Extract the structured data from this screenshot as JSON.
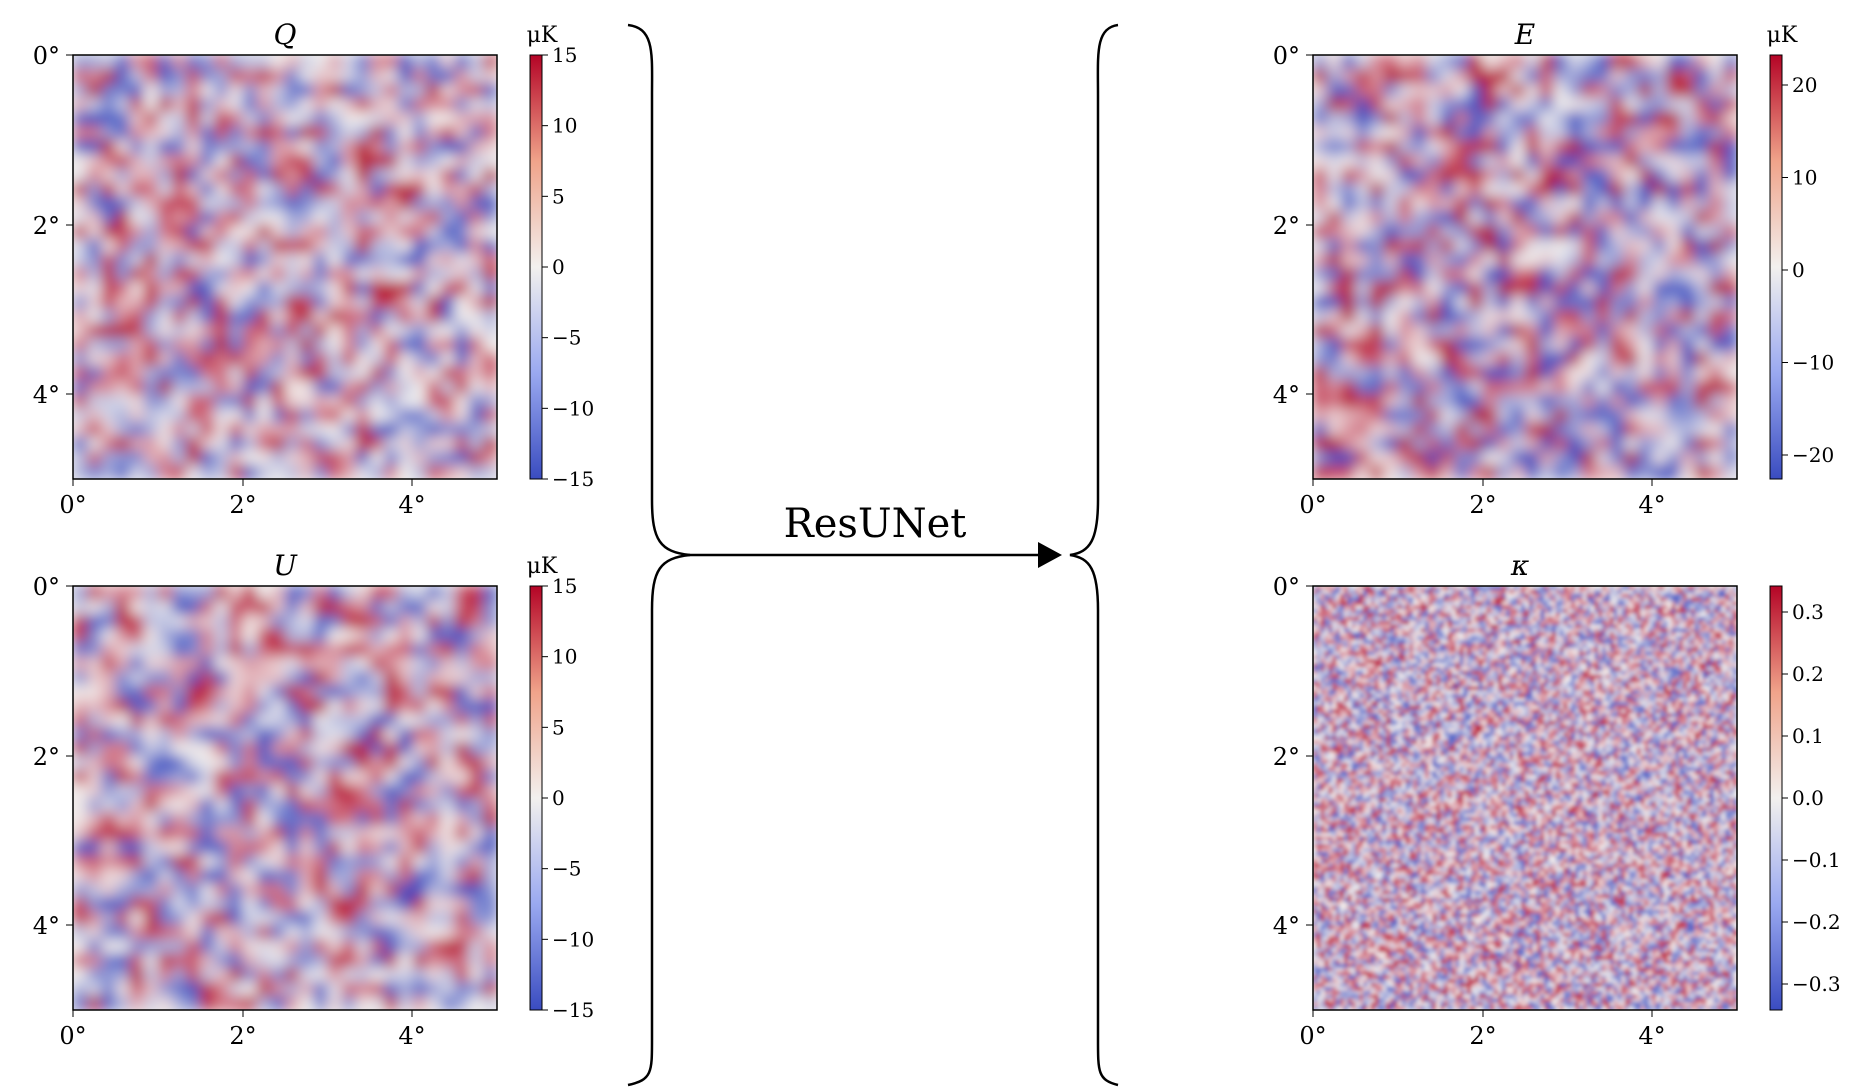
{
  "panels": [
    {
      "id": "q",
      "title": "Q",
      "unit": "μK",
      "x_ticks": [
        "0°",
        "2°",
        "4°"
      ],
      "y_ticks": [
        "0°",
        "2°",
        "4°"
      ],
      "colorbar_ticks": [
        "15",
        "10",
        "5",
        "0",
        "−5",
        "−10",
        "−15"
      ]
    },
    {
      "id": "u",
      "title": "U",
      "unit": "μK",
      "x_ticks": [
        "0°",
        "2°",
        "4°"
      ],
      "y_ticks": [
        "0°",
        "2°",
        "4°"
      ],
      "colorbar_ticks": [
        "15",
        "10",
        "5",
        "0",
        "−5",
        "−10",
        "−15"
      ]
    },
    {
      "id": "e",
      "title": "E",
      "unit": "μK",
      "x_ticks": [
        "0°",
        "2°",
        "4°"
      ],
      "y_ticks": [
        "0°",
        "2°",
        "4°"
      ],
      "colorbar_ticks": [
        "20",
        "10",
        "0",
        "−10",
        "−20"
      ]
    },
    {
      "id": "k",
      "title": "κ",
      "unit": "",
      "x_ticks": [
        "0°",
        "2°",
        "4°"
      ],
      "y_ticks": [
        "0°",
        "2°",
        "4°"
      ],
      "colorbar_ticks": [
        "0.3",
        "0.2",
        "0.1",
        "0.0",
        "−0.1",
        "−0.2",
        "−0.3"
      ]
    }
  ],
  "arrow": {
    "label": "ResUNet"
  },
  "colors": {
    "cold": "#3a4cc0",
    "neutral": "#f2f0ee",
    "hot": "#b40426"
  }
}
